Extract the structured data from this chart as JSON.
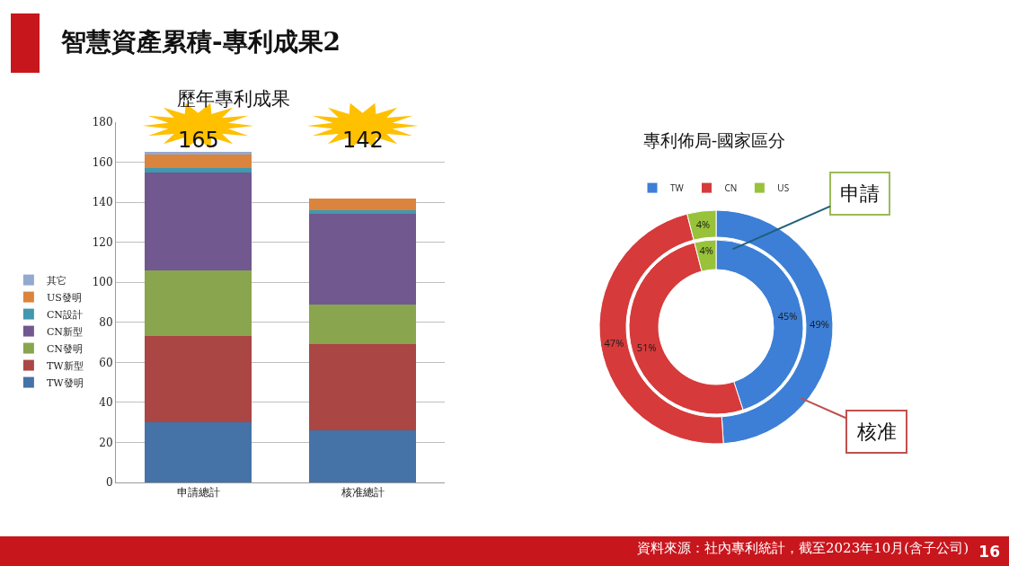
{
  "chart_data": [
    {
      "type": "bar",
      "title": "歷年專利成果",
      "stacked": true,
      "categories": [
        "申請總計",
        "核准總計"
      ],
      "series": [
        {
          "name": "TW發明",
          "color": "#4572a7",
          "values": [
            30,
            26
          ]
        },
        {
          "name": "TW新型",
          "color": "#aa4643",
          "values": [
            43,
            43
          ]
        },
        {
          "name": "CN發明",
          "color": "#89a54e",
          "values": [
            33,
            20
          ]
        },
        {
          "name": "CN新型",
          "color": "#71588f",
          "values": [
            49,
            45
          ]
        },
        {
          "name": "CN設計",
          "color": "#4198af",
          "values": [
            2,
            2
          ]
        },
        {
          "name": "US發明",
          "color": "#db843d",
          "values": [
            7,
            6
          ]
        },
        {
          "name": "其它",
          "color": "#93a9cf",
          "values": [
            1,
            0
          ]
        }
      ],
      "totals": [
        "165",
        "142"
      ],
      "ylim": [
        0,
        180
      ],
      "yticks": [
        0,
        20,
        40,
        60,
        80,
        100,
        120,
        140,
        160,
        180
      ],
      "grid": "y",
      "legend": "left",
      "annotations": [
        "智慧資產累積-專利成果2",
        "資料來源：社內專利統計，截至2023年10月(含子公司)",
        "16"
      ]
    },
    {
      "type": "donut",
      "title": "專利佈局-國家區分",
      "categories": [
        "TW",
        "CN",
        "US"
      ],
      "colors": [
        "#3d7fd6",
        "#d63a3a",
        "#98c23a"
      ],
      "series": [
        {
          "name": "核准",
          "values": [
            49,
            47,
            4
          ],
          "value_labels": [
            "49%",
            "47%",
            "4%"
          ]
        },
        {
          "name": "申請",
          "values": [
            45,
            51,
            4
          ],
          "value_labels": [
            "45%",
            "51%",
            "4%"
          ]
        }
      ],
      "legend": "top"
    }
  ]
}
